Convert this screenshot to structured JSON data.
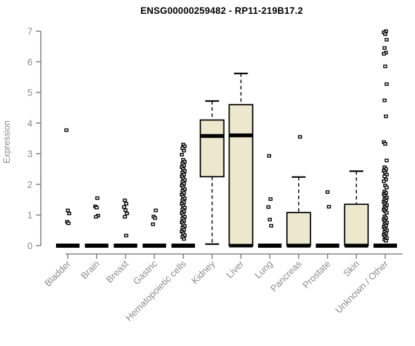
{
  "page": {
    "background": "#ffffff"
  },
  "chart_data": {
    "type": "boxplot",
    "title": "ENSG00000259482 - RP11-219B17.2",
    "ylabel": "Expression",
    "xlabel": "",
    "ylim": [
      0,
      7
    ],
    "yticks": [
      0,
      1,
      2,
      3,
      4,
      5,
      6,
      7
    ],
    "grid": false,
    "legend": false,
    "x_label_rotation_deg": -45,
    "colors": {
      "box_fill": "#ECE7CD",
      "box_stroke": "#000000",
      "whisker": "#000000",
      "outlier": "#000000",
      "axis": "#848484",
      "tick_label": "#8C8C8C",
      "title": "#000000"
    },
    "categories": [
      "Bladder",
      "Brain",
      "Breast",
      "Gastric",
      "Hematopoietic cells",
      "Kidney",
      "Liver",
      "Lung",
      "Pancreas",
      "Prostate",
      "Skin",
      "Unknown / Other"
    ],
    "series": [
      {
        "category": "Bladder",
        "q1": 0,
        "median": 0,
        "q3": 0,
        "whisker_low": 0,
        "whisker_high": 0,
        "outliers": [
          3.77,
          1.15,
          1.05,
          0.78,
          0.73
        ]
      },
      {
        "category": "Brain",
        "q1": 0,
        "median": 0,
        "q3": 0,
        "whisker_low": 0,
        "whisker_high": 0,
        "outliers": [
          1.55,
          1.28,
          1.24,
          0.98,
          0.94
        ]
      },
      {
        "category": "Breast",
        "q1": 0,
        "median": 0,
        "q3": 0,
        "whisker_low": 0,
        "whisker_high": 0,
        "outliers": [
          1.48,
          1.37,
          1.26,
          1.16,
          1.05,
          0.94,
          0.33
        ]
      },
      {
        "category": "Gastric",
        "q1": 0,
        "median": 0,
        "q3": 0,
        "whisker_low": 0,
        "whisker_high": 0,
        "outliers": [
          1.15,
          0.95,
          0.9,
          0.7
        ]
      },
      {
        "category": "Hematopoietic cells",
        "q1": 0,
        "median": 0,
        "q3": 0,
        "whisker_low": 0,
        "whisker_high": 0,
        "outliers": [
          3.3,
          3.24,
          3.18,
          3.1,
          2.97,
          2.8,
          2.74,
          2.68,
          2.62,
          2.56,
          2.5,
          2.44,
          2.38,
          2.32,
          2.26,
          2.2,
          2.14,
          2.08,
          2.02,
          1.96,
          1.9,
          1.84,
          1.78,
          1.72,
          1.66,
          1.6,
          1.54,
          1.48,
          1.42,
          1.36,
          1.3,
          1.24,
          1.18,
          1.12,
          1.06,
          1.0,
          0.94,
          0.88,
          0.82,
          0.76,
          0.7,
          0.64,
          0.58,
          0.52,
          0.46,
          0.4,
          0.34,
          0.28,
          0.22
        ]
      },
      {
        "category": "Kidney",
        "q1": 2.25,
        "median": 3.58,
        "q3": 4.1,
        "whisker_low": 0.05,
        "whisker_high": 4.72,
        "outliers": []
      },
      {
        "category": "Liver",
        "q1": 0,
        "median": 3.6,
        "q3": 4.6,
        "whisker_low": 0,
        "whisker_high": 5.62,
        "outliers": []
      },
      {
        "category": "Lung",
        "q1": 0,
        "median": 0,
        "q3": 0,
        "whisker_low": 0,
        "whisker_high": 0,
        "outliers": [
          2.93,
          1.52,
          1.26,
          0.85,
          0.65
        ]
      },
      {
        "category": "Pancreas",
        "q1": 0,
        "median": 0,
        "q3": 1.08,
        "whisker_low": 0,
        "whisker_high": 2.24,
        "outliers": [
          3.55
        ]
      },
      {
        "category": "Prostate",
        "q1": 0,
        "median": 0,
        "q3": 0,
        "whisker_low": 0,
        "whisker_high": 0,
        "outliers": [
          1.75,
          1.27
        ]
      },
      {
        "category": "Skin",
        "q1": 0,
        "median": 0,
        "q3": 1.35,
        "whisker_low": 0,
        "whisker_high": 2.43,
        "outliers": []
      },
      {
        "category": "Unknown / Other",
        "q1": 0,
        "median": 0,
        "q3": 0,
        "whisker_low": 0,
        "whisker_high": 0,
        "outliers": [
          7.0,
          6.96,
          6.9,
          6.72,
          6.45,
          6.3,
          6.26,
          5.85,
          5.27,
          4.74,
          4.22,
          3.38,
          3.32,
          2.78,
          2.56,
          2.5,
          2.44,
          2.38,
          2.32,
          2.26,
          2.16,
          2.1,
          1.96,
          1.9,
          1.77,
          1.72,
          1.67,
          1.62,
          1.57,
          1.52,
          1.47,
          1.42,
          1.37,
          1.32,
          1.27,
          1.22,
          1.17,
          1.12,
          1.07,
          0.95,
          0.9,
          0.85,
          0.8,
          0.75,
          0.7,
          0.65,
          0.6,
          0.55,
          0.5,
          0.45,
          0.4,
          0.35,
          0.3,
          0.25,
          0.2,
          0.16
        ]
      }
    ]
  }
}
